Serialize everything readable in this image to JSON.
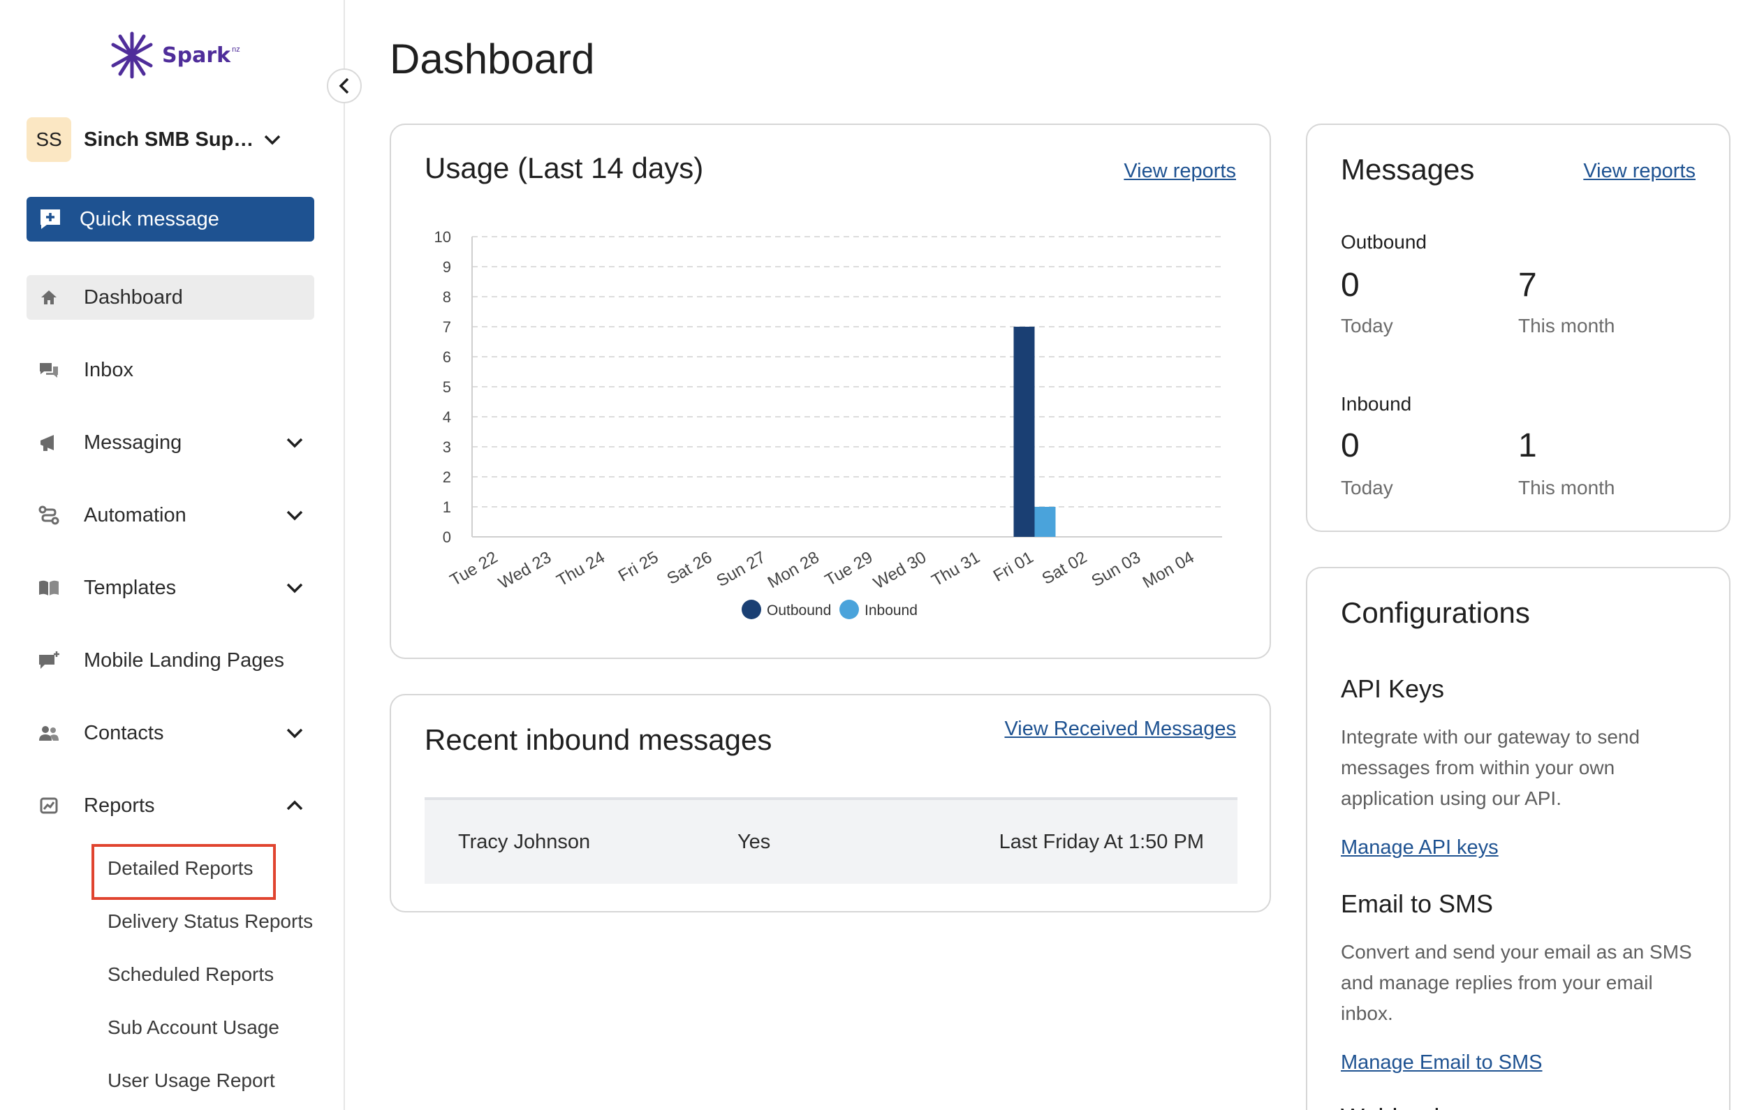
{
  "brand": {
    "name": "Spark",
    "suffix": "nz",
    "color": "#4f2d9a"
  },
  "account": {
    "initials": "SS",
    "name": "Sinch SMB Supp..."
  },
  "quick_message": {
    "label": "Quick message"
  },
  "nav": {
    "dashboard": "Dashboard",
    "inbox": "Inbox",
    "messaging": "Messaging",
    "automation": "Automation",
    "templates": "Templates",
    "mobile_landing": "Mobile Landing Pages",
    "contacts": "Contacts",
    "reports": "Reports"
  },
  "reports_sub": {
    "detailed": "Detailed Reports",
    "delivery": "Delivery Status Reports",
    "scheduled": "Scheduled Reports",
    "sub_account": "Sub Account Usage",
    "user_usage": "User Usage Report"
  },
  "page_title": "Dashboard",
  "usage_card": {
    "title": "Usage (Last 14 days)",
    "link": "View reports"
  },
  "chart_data": {
    "type": "bar",
    "categories": [
      "Tue 22",
      "Wed 23",
      "Thu 24",
      "Fri 25",
      "Sat 26",
      "Sun 27",
      "Mon 28",
      "Tue 29",
      "Wed 30",
      "Thu 31",
      "Fri 01",
      "Sat 02",
      "Sun 03",
      "Mon 04"
    ],
    "series": [
      {
        "name": "Outbound",
        "color": "#1a3f73",
        "values": [
          0,
          0,
          0,
          0,
          0,
          0,
          0,
          0,
          0,
          0,
          7,
          0,
          0,
          0
        ]
      },
      {
        "name": "Inbound",
        "color": "#4aa3db",
        "values": [
          0,
          0,
          0,
          0,
          0,
          0,
          0,
          0,
          0,
          0,
          1,
          0,
          0,
          0
        ]
      }
    ],
    "ylim": [
      0,
      10
    ],
    "yticks": [
      0,
      1,
      2,
      3,
      4,
      5,
      6,
      7,
      8,
      9,
      10
    ],
    "grid": true,
    "legend": "bottom"
  },
  "recent_card": {
    "title": "Recent inbound messages",
    "link": "View Received Messages",
    "rows": [
      {
        "name": "Tracy Johnson",
        "status": "Yes",
        "time": "Last Friday At 1:50 PM"
      }
    ]
  },
  "messages_card": {
    "title": "Messages",
    "link": "View reports",
    "outbound_label": "Outbound",
    "outbound_today": "0",
    "outbound_month": "7",
    "inbound_label": "Inbound",
    "inbound_today": "0",
    "inbound_month": "1",
    "today_label": "Today",
    "month_label": "This month"
  },
  "config_card": {
    "title": "Configurations",
    "api_title": "API Keys",
    "api_text": "Integrate with our gateway to send messages from within your own application using our API.",
    "api_link": "Manage API keys",
    "email_title": "Email to SMS",
    "email_text": "Convert and send your email as an SMS and manage replies from your email inbox.",
    "email_link": "Manage Email to SMS",
    "next_title": "Webhooks"
  }
}
